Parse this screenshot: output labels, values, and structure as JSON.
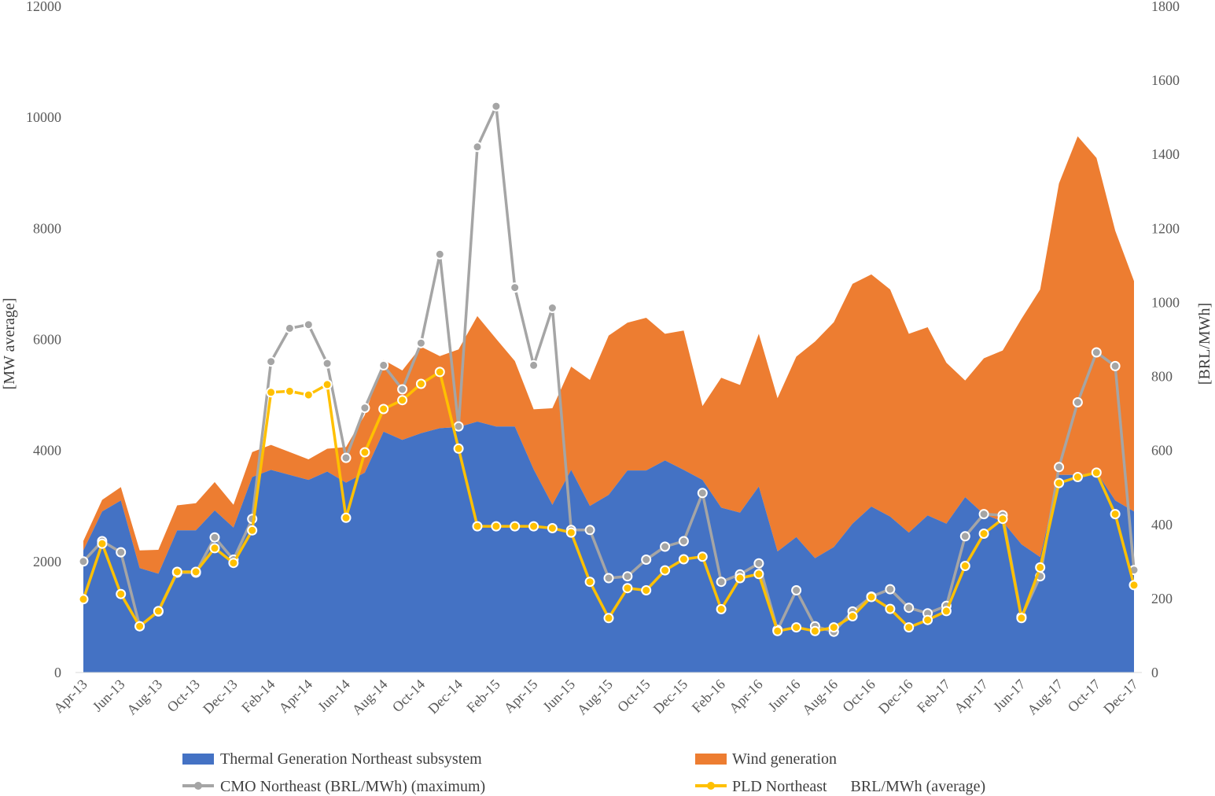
{
  "chart_data": {
    "type": "area",
    "x": [
      "Apr-13",
      "May-13",
      "Jun-13",
      "Jul-13",
      "Aug-13",
      "Sep-13",
      "Oct-13",
      "Nov-13",
      "Dec-13",
      "Jan-14",
      "Feb-14",
      "Mar-14",
      "Apr-14",
      "May-14",
      "Jun-14",
      "Jul-14",
      "Aug-14",
      "Sep-14",
      "Oct-14",
      "Nov-14",
      "Dec-14",
      "Jan-15",
      "Feb-15",
      "Mar-15",
      "Apr-15",
      "May-15",
      "Jun-15",
      "Jul-15",
      "Aug-15",
      "Sep-15",
      "Oct-15",
      "Nov-15",
      "Dec-15",
      "Jan-16",
      "Feb-16",
      "Mar-16",
      "Apr-16",
      "May-16",
      "Jun-16",
      "Jul-16",
      "Aug-16",
      "Sep-16",
      "Oct-16",
      "Nov-16",
      "Dec-16",
      "Jan-17",
      "Feb-17",
      "Mar-17",
      "Apr-17",
      "May-17",
      "Jun-17",
      "Jul-17",
      "Aug-17",
      "Sep-17",
      "Oct-17",
      "Nov-17",
      "Dec-17"
    ],
    "xtick_labels": [
      "Apr-13",
      "Jun-13",
      "Aug-13",
      "Oct-13",
      "Dec-13",
      "Feb-14",
      "Apr-14",
      "Jun-14",
      "Aug-14",
      "Oct-14",
      "Dec-14",
      "Feb-15",
      "Apr-15",
      "Jun-15",
      "Aug-15",
      "Oct-15",
      "Dec-15",
      "Feb-16",
      "Apr-16",
      "Jun-16",
      "Aug-16",
      "Oct-16",
      "Dec-16",
      "Feb-17",
      "Apr-17",
      "Jun-17",
      "Aug-17",
      "Oct-17",
      "Dec-17"
    ],
    "y_left": {
      "label": "[MW average]",
      "range": [
        0,
        12000
      ],
      "ticks": [
        "0",
        "2000",
        "4000",
        "6000",
        "8000",
        "10000",
        "12000"
      ]
    },
    "y_right": {
      "label": "[BRL/MWh]",
      "range": [
        0,
        1800
      ],
      "ticks": [
        "0",
        "200",
        "400",
        "600",
        "800",
        "1000",
        "1200",
        "1400",
        "1600",
        "1800"
      ]
    },
    "series": [
      {
        "name": "Thermal Generation Northeast subsystem",
        "type": "area",
        "axis": "left",
        "color": "#4472C4",
        "values": [
          2200,
          2900,
          3100,
          1880,
          1780,
          2560,
          2560,
          2920,
          2610,
          3520,
          3650,
          3560,
          3470,
          3620,
          3420,
          3600,
          4340,
          4190,
          4310,
          4400,
          4420,
          4520,
          4430,
          4430,
          3660,
          3020,
          3650,
          3000,
          3200,
          3640,
          3640,
          3820,
          3650,
          3470,
          2970,
          2880,
          3350,
          2180,
          2440,
          2060,
          2260,
          2680,
          2990,
          2810,
          2520,
          2830,
          2680,
          3160,
          2850,
          2720,
          2310,
          2080,
          3560,
          3560,
          3610,
          3100,
          2900
        ]
      },
      {
        "name": "Wind generation",
        "type": "area",
        "axis": "left",
        "color": "#ED7D31",
        "values": [
          170,
          210,
          240,
          320,
          430,
          450,
          490,
          510,
          410,
          450,
          450,
          410,
          370,
          410,
          640,
          1040,
          1290,
          1250,
          1560,
          1300,
          1400,
          1900,
          1580,
          1180,
          1080,
          1740,
          1860,
          2270,
          2870,
          2660,
          2750,
          2280,
          2510,
          1330,
          2340,
          2300,
          2750,
          2760,
          3250,
          3900,
          4050,
          4320,
          4180,
          4090,
          3580,
          3390,
          2900,
          2100,
          2810,
          3080,
          4060,
          4820,
          5250,
          6100,
          5660,
          4860,
          4150
        ]
      },
      {
        "name": "CMO Northeast (BRL/MWh) (maximum)",
        "type": "line",
        "axis": "right",
        "color": "#A5A5A5",
        "values": [
          300,
          355,
          325,
          125,
          165,
          270,
          270,
          365,
          305,
          415,
          840,
          930,
          940,
          835,
          580,
          715,
          830,
          765,
          890,
          1130,
          665,
          1420,
          1530,
          1040,
          830,
          985,
          385,
          385,
          255,
          260,
          305,
          340,
          355,
          485,
          245,
          265,
          295,
          115,
          222,
          125,
          110,
          165,
          205,
          225,
          175,
          160,
          180,
          368,
          428,
          425,
          150,
          260,
          555,
          730,
          865,
          828,
          277
        ]
      },
      {
        "name": "PLD Northeast      BRL/MWh (average)",
        "type": "line",
        "axis": "right",
        "color": "#FFC000",
        "values": [
          198,
          348,
          212,
          125,
          166,
          272,
          272,
          336,
          296,
          384,
          757,
          760,
          750,
          778,
          418,
          595,
          712,
          736,
          780,
          812,
          605,
          395,
          395,
          395,
          395,
          390,
          378,
          245,
          147,
          228,
          222,
          276,
          306,
          313,
          171,
          255,
          266,
          112,
          122,
          112,
          122,
          152,
          204,
          172,
          122,
          142,
          166,
          288,
          375,
          415,
          147,
          284,
          512,
          528,
          540,
          428,
          236
        ]
      }
    ],
    "legend": {
      "placement": "bottom",
      "labels": [
        "Thermal Generation Northeast subsystem",
        "Wind generation",
        "CMO Northeast (BRL/MWh) (maximum)",
        "PLD Northeast      BRL/MWh (average)"
      ]
    },
    "grid": false
  }
}
